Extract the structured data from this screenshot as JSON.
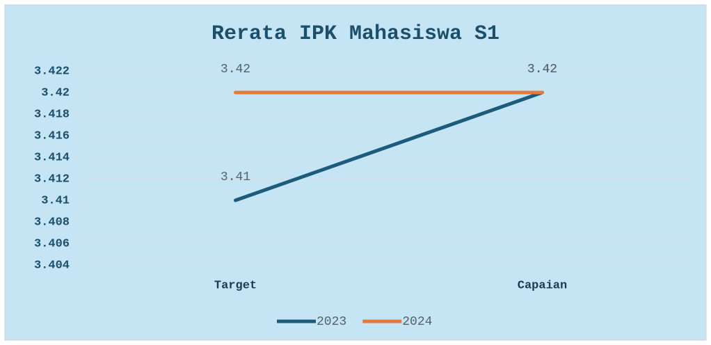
{
  "chart_data": {
    "type": "line",
    "title": "Rerata IPK Mahasiswa S1",
    "categories": [
      "Target",
      "Capaian"
    ],
    "series": [
      {
        "name": "2023",
        "color": "#1d5b7c",
        "values": [
          3.41,
          3.42
        ]
      },
      {
        "name": "2024",
        "color": "#e8793a",
        "values": [
          3.42,
          3.42
        ]
      }
    ],
    "ylim": [
      3.404,
      3.422
    ],
    "yticks": [
      3.404,
      3.406,
      3.408,
      3.41,
      3.412,
      3.414,
      3.416,
      3.418,
      3.42,
      3.422
    ],
    "grid": true,
    "legend": "bottom",
    "data_labels": true
  }
}
